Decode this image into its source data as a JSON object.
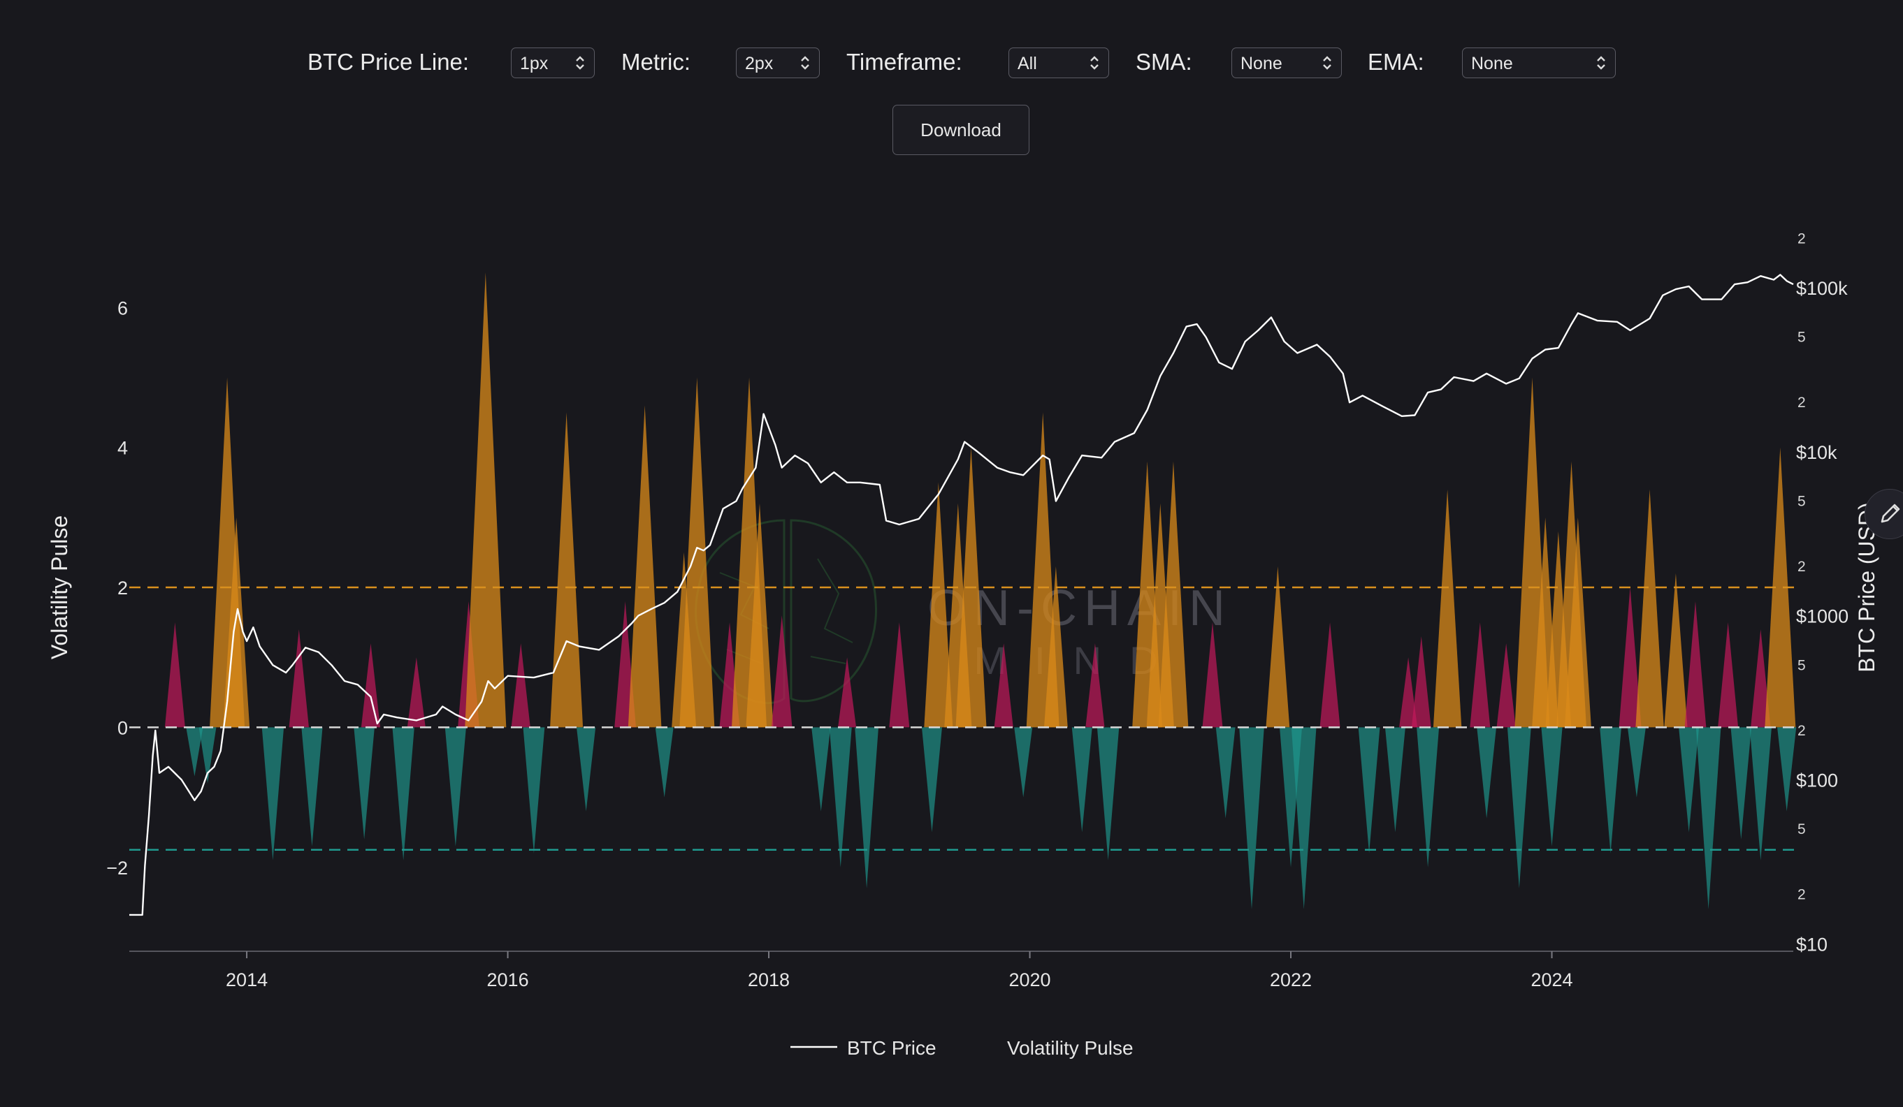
{
  "controls": {
    "price_line": {
      "label": "BTC Price Line:",
      "value": "1px"
    },
    "metric": {
      "label": "Metric:",
      "value": "2px"
    },
    "timeframe": {
      "label": "Timeframe:",
      "value": "All"
    },
    "sma": {
      "label": "SMA:",
      "value": "None"
    },
    "ema": {
      "label": "EMA:",
      "value": "None"
    },
    "download_label": "Download"
  },
  "watermark": {
    "line1": "ON-CHAIN",
    "line2": "MIND"
  },
  "colors": {
    "background": "#18181d",
    "price_line": "#ffffff",
    "positive_pulse": "#c2185b",
    "strong_pulse": "#d98a1a",
    "negative_pulse": "#1f9a8f",
    "upper_threshold": "#d9901e",
    "lower_threshold": "#1f9a8f"
  },
  "chart_data": {
    "type": "area",
    "title": "",
    "xlabel": "",
    "ylabel_left": "Volatility Pulse",
    "ylabel_right": "BTC Price (USD)",
    "x_range": [
      2013.1,
      2025.85
    ],
    "x_ticks": [
      "2014",
      "2016",
      "2018",
      "2020",
      "2022",
      "2024"
    ],
    "y_left_range": [
      -3.2,
      7.4
    ],
    "y_left_ticks": [
      6,
      4,
      2,
      0,
      -2
    ],
    "y_right_scale": "log",
    "y_right_range": [
      9,
      300000
    ],
    "y_right_major_ticks": [
      {
        "value": 10,
        "label": "$10"
      },
      {
        "value": 100,
        "label": "$100"
      },
      {
        "value": 1000,
        "label": "$1000"
      },
      {
        "value": 10000,
        "label": "$10k"
      },
      {
        "value": 100000,
        "label": "$100k"
      }
    ],
    "y_right_minor_labels": [
      "2",
      "5"
    ],
    "thresholds": [
      {
        "value": 2,
        "color": "#d9901e"
      },
      {
        "value": -1.75,
        "color": "#1f9a8f"
      }
    ],
    "zero_line": 0,
    "legend_position": "bottom-center",
    "series": [
      {
        "name": "BTC Price",
        "axis": "right",
        "points": [
          [
            2013.1,
            15
          ],
          [
            2013.2,
            15
          ],
          [
            2013.22,
            30
          ],
          [
            2013.25,
            60
          ],
          [
            2013.28,
            140
          ],
          [
            2013.3,
            200
          ],
          [
            2013.33,
            110
          ],
          [
            2013.4,
            120
          ],
          [
            2013.5,
            100
          ],
          [
            2013.6,
            75
          ],
          [
            2013.65,
            85
          ],
          [
            2013.7,
            110
          ],
          [
            2013.75,
            120
          ],
          [
            2013.8,
            150
          ],
          [
            2013.85,
            300
          ],
          [
            2013.9,
            800
          ],
          [
            2013.93,
            1100
          ],
          [
            2013.97,
            800
          ],
          [
            2014.0,
            700
          ],
          [
            2014.05,
            850
          ],
          [
            2014.1,
            650
          ],
          [
            2014.2,
            500
          ],
          [
            2014.3,
            450
          ],
          [
            2014.35,
            500
          ],
          [
            2014.45,
            640
          ],
          [
            2014.55,
            600
          ],
          [
            2014.65,
            500
          ],
          [
            2014.75,
            400
          ],
          [
            2014.85,
            380
          ],
          [
            2014.95,
            320
          ],
          [
            2015.0,
            220
          ],
          [
            2015.05,
            250
          ],
          [
            2015.15,
            240
          ],
          [
            2015.3,
            230
          ],
          [
            2015.45,
            250
          ],
          [
            2015.5,
            280
          ],
          [
            2015.6,
            250
          ],
          [
            2015.7,
            230
          ],
          [
            2015.8,
            300
          ],
          [
            2015.85,
            400
          ],
          [
            2015.9,
            360
          ],
          [
            2016.0,
            430
          ],
          [
            2016.2,
            420
          ],
          [
            2016.35,
            450
          ],
          [
            2016.45,
            700
          ],
          [
            2016.55,
            650
          ],
          [
            2016.7,
            620
          ],
          [
            2016.85,
            750
          ],
          [
            2016.95,
            900
          ],
          [
            2017.0,
            1000
          ],
          [
            2017.1,
            1100
          ],
          [
            2017.2,
            1200
          ],
          [
            2017.3,
            1400
          ],
          [
            2017.4,
            2000
          ],
          [
            2017.45,
            2600
          ],
          [
            2017.5,
            2500
          ],
          [
            2017.55,
            2700
          ],
          [
            2017.65,
            4500
          ],
          [
            2017.75,
            5000
          ],
          [
            2017.8,
            6000
          ],
          [
            2017.9,
            8000
          ],
          [
            2017.96,
            17000
          ],
          [
            2018.0,
            14000
          ],
          [
            2018.05,
            11000
          ],
          [
            2018.1,
            8000
          ],
          [
            2018.2,
            9500
          ],
          [
            2018.3,
            8500
          ],
          [
            2018.4,
            6500
          ],
          [
            2018.5,
            7500
          ],
          [
            2018.6,
            6500
          ],
          [
            2018.7,
            6500
          ],
          [
            2018.85,
            6300
          ],
          [
            2018.9,
            3800
          ],
          [
            2019.0,
            3600
          ],
          [
            2019.15,
            3900
          ],
          [
            2019.3,
            5500
          ],
          [
            2019.45,
            9000
          ],
          [
            2019.5,
            11500
          ],
          [
            2019.6,
            10000
          ],
          [
            2019.75,
            8000
          ],
          [
            2019.85,
            7500
          ],
          [
            2019.95,
            7200
          ],
          [
            2020.1,
            9500
          ],
          [
            2020.15,
            9000
          ],
          [
            2020.2,
            5000
          ],
          [
            2020.3,
            7000
          ],
          [
            2020.4,
            9500
          ],
          [
            2020.55,
            9200
          ],
          [
            2020.65,
            11500
          ],
          [
            2020.8,
            13000
          ],
          [
            2020.9,
            18000
          ],
          [
            2021.0,
            29000
          ],
          [
            2021.1,
            40000
          ],
          [
            2021.2,
            58000
          ],
          [
            2021.28,
            60000
          ],
          [
            2021.35,
            50000
          ],
          [
            2021.45,
            35000
          ],
          [
            2021.55,
            32000
          ],
          [
            2021.65,
            47000
          ],
          [
            2021.75,
            55000
          ],
          [
            2021.85,
            66000
          ],
          [
            2021.95,
            47000
          ],
          [
            2022.05,
            40000
          ],
          [
            2022.2,
            45000
          ],
          [
            2022.3,
            38000
          ],
          [
            2022.4,
            30000
          ],
          [
            2022.45,
            20000
          ],
          [
            2022.55,
            22000
          ],
          [
            2022.7,
            19000
          ],
          [
            2022.85,
            16500
          ],
          [
            2022.95,
            16700
          ],
          [
            2023.05,
            23000
          ],
          [
            2023.15,
            24000
          ],
          [
            2023.25,
            28500
          ],
          [
            2023.4,
            27000
          ],
          [
            2023.5,
            30000
          ],
          [
            2023.65,
            26000
          ],
          [
            2023.75,
            28000
          ],
          [
            2023.85,
            37000
          ],
          [
            2023.95,
            42000
          ],
          [
            2024.05,
            43000
          ],
          [
            2024.15,
            60000
          ],
          [
            2024.2,
            70000
          ],
          [
            2024.35,
            63000
          ],
          [
            2024.5,
            62000
          ],
          [
            2024.6,
            55000
          ],
          [
            2024.75,
            65000
          ],
          [
            2024.85,
            90000
          ],
          [
            2024.95,
            98000
          ],
          [
            2025.05,
            102000
          ],
          [
            2025.15,
            85000
          ],
          [
            2025.3,
            85000
          ],
          [
            2025.4,
            105000
          ],
          [
            2025.5,
            108000
          ],
          [
            2025.6,
            118000
          ],
          [
            2025.7,
            112000
          ],
          [
            2025.75,
            120000
          ],
          [
            2025.8,
            110000
          ],
          [
            2025.85,
            105000
          ]
        ]
      },
      {
        "name": "Volatility Pulse",
        "axis": "left",
        "spikes": [
          [
            2013.45,
            1.5
          ],
          [
            2013.85,
            5.0
          ],
          [
            2013.92,
            3.0
          ],
          [
            2014.4,
            1.4
          ],
          [
            2014.95,
            1.2
          ],
          [
            2015.3,
            1.0
          ],
          [
            2015.7,
            1.8
          ],
          [
            2015.83,
            6.5
          ],
          [
            2016.1,
            1.2
          ],
          [
            2016.45,
            4.5
          ],
          [
            2016.9,
            1.8
          ],
          [
            2017.05,
            4.6
          ],
          [
            2017.35,
            2.5
          ],
          [
            2017.45,
            5.0
          ],
          [
            2017.7,
            1.5
          ],
          [
            2017.85,
            5.0
          ],
          [
            2017.93,
            3.2
          ],
          [
            2018.1,
            1.6
          ],
          [
            2018.6,
            1.0
          ],
          [
            2019.0,
            1.5
          ],
          [
            2019.3,
            3.5
          ],
          [
            2019.45,
            3.2
          ],
          [
            2019.55,
            4.0
          ],
          [
            2019.8,
            1.2
          ],
          [
            2020.1,
            4.5
          ],
          [
            2020.2,
            2.3
          ],
          [
            2020.5,
            1.2
          ],
          [
            2020.9,
            3.8
          ],
          [
            2021.0,
            3.2
          ],
          [
            2021.1,
            3.8
          ],
          [
            2021.4,
            1.5
          ],
          [
            2021.9,
            2.3
          ],
          [
            2022.3,
            1.5
          ],
          [
            2022.9,
            1.0
          ],
          [
            2023.0,
            1.3
          ],
          [
            2023.2,
            3.4
          ],
          [
            2023.45,
            1.5
          ],
          [
            2023.65,
            1.2
          ],
          [
            2023.85,
            5.0
          ],
          [
            2023.95,
            3.0
          ],
          [
            2024.05,
            2.8
          ],
          [
            2024.15,
            3.8
          ],
          [
            2024.2,
            3.0
          ],
          [
            2024.6,
            2.0
          ],
          [
            2024.75,
            3.4
          ],
          [
            2024.95,
            2.2
          ],
          [
            2025.1,
            1.8
          ],
          [
            2025.35,
            1.5
          ],
          [
            2025.6,
            1.4
          ],
          [
            2025.75,
            4.0
          ],
          [
            2013.6,
            -0.7
          ],
          [
            2013.7,
            -0.8
          ],
          [
            2014.2,
            -1.9
          ],
          [
            2014.5,
            -1.7
          ],
          [
            2014.9,
            -1.6
          ],
          [
            2015.2,
            -1.9
          ],
          [
            2015.6,
            -1.7
          ],
          [
            2016.2,
            -1.8
          ],
          [
            2016.6,
            -1.2
          ],
          [
            2017.2,
            -1.0
          ],
          [
            2018.4,
            -1.2
          ],
          [
            2018.55,
            -2.0
          ],
          [
            2018.75,
            -2.3
          ],
          [
            2019.25,
            -1.5
          ],
          [
            2019.95,
            -1.0
          ],
          [
            2020.4,
            -1.5
          ],
          [
            2020.6,
            -1.9
          ],
          [
            2021.5,
            -1.3
          ],
          [
            2021.7,
            -2.6
          ],
          [
            2022.0,
            -2.0
          ],
          [
            2022.1,
            -2.6
          ],
          [
            2022.6,
            -1.8
          ],
          [
            2022.8,
            -1.5
          ],
          [
            2023.05,
            -2.0
          ],
          [
            2023.5,
            -1.3
          ],
          [
            2023.75,
            -2.3
          ],
          [
            2024.0,
            -1.7
          ],
          [
            2024.45,
            -1.8
          ],
          [
            2024.65,
            -1.0
          ],
          [
            2025.05,
            -1.5
          ],
          [
            2025.2,
            -2.6
          ],
          [
            2025.45,
            -1.6
          ],
          [
            2025.6,
            -1.9
          ],
          [
            2025.8,
            -1.2
          ]
        ]
      }
    ]
  }
}
